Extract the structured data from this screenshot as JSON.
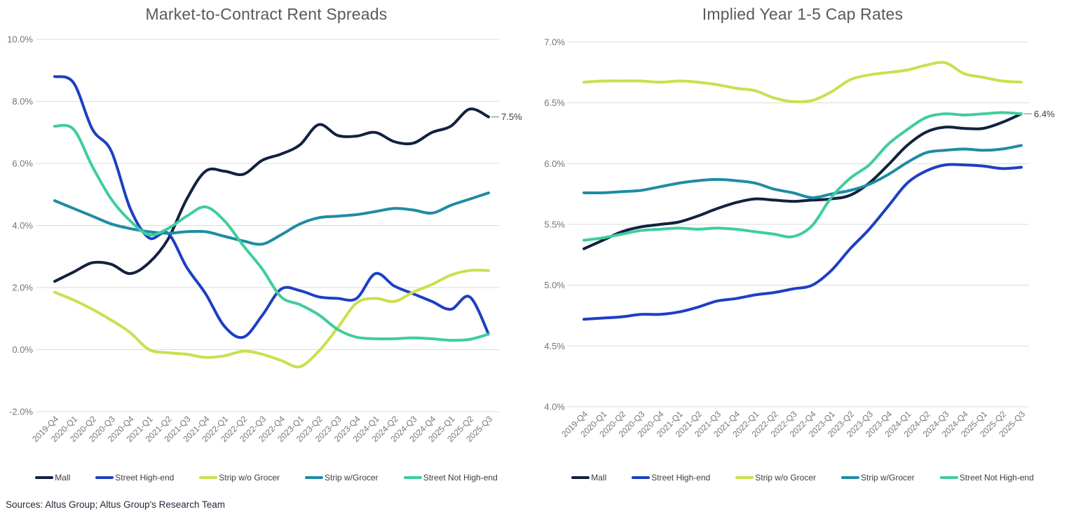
{
  "page": {
    "source_note": "Sources: Altus Group; Altus Group's Research Team"
  },
  "colors": {
    "mall": "#12213f",
    "street_high_end": "#1d3fc4",
    "strip_wo_grocer": "#c9e04e",
    "strip_w_grocer": "#1e8ca3",
    "street_not_high_end": "#3fcd9e",
    "grid": "#dcdcdc",
    "axis_text": "#757575",
    "title_text": "#595959",
    "annotation_text": "#3a3a3a"
  },
  "chart_data": [
    {
      "type": "line",
      "title": "Market-to-Contract Rent Spreads",
      "xlabel": "",
      "ylabel": "",
      "ylim": [
        -2.0,
        10.0
      ],
      "ytick_step": 2.0,
      "ytick_format": "percent_1dp",
      "grid": "horizontal",
      "legend_position": "bottom",
      "categories": [
        "2019-Q4",
        "2020-Q1",
        "2020-Q2",
        "2020-Q3",
        "2020-Q4",
        "2021-Q1",
        "2021-Q2",
        "2021-Q3",
        "2021-Q4",
        "2022-Q1",
        "2022-Q2",
        "2022-Q3",
        "2022-Q4",
        "2023-Q1",
        "2023-Q2",
        "2023-Q3",
        "2023-Q4",
        "2024-Q1",
        "2024-Q2",
        "2024-Q3",
        "2024-Q4",
        "2025-Q1",
        "2025-Q2",
        "2025-Q3"
      ],
      "series": [
        {
          "name": "Mall",
          "color": "#12213f",
          "values": [
            2.2,
            2.5,
            2.8,
            2.75,
            2.45,
            2.8,
            3.55,
            4.85,
            5.75,
            5.75,
            5.65,
            6.1,
            6.3,
            6.6,
            7.25,
            6.9,
            6.88,
            7.0,
            6.7,
            6.65,
            7.0,
            7.2,
            7.75,
            7.5
          ]
        },
        {
          "name": "Street High-end",
          "color": "#1d3fc4",
          "values": [
            8.8,
            8.6,
            7.1,
            6.4,
            4.55,
            3.6,
            3.75,
            2.65,
            1.8,
            0.75,
            0.4,
            1.1,
            1.95,
            1.9,
            1.7,
            1.65,
            1.65,
            2.45,
            2.05,
            1.8,
            1.55,
            1.3,
            1.7,
            0.5
          ]
        },
        {
          "name": "Strip w/o Grocer",
          "color": "#c9e04e",
          "values": [
            1.85,
            1.6,
            1.3,
            0.95,
            0.55,
            0.0,
            -0.1,
            -0.15,
            -0.25,
            -0.2,
            -0.05,
            -0.15,
            -0.35,
            -0.55,
            -0.05,
            0.7,
            1.5,
            1.65,
            1.55,
            1.85,
            2.1,
            2.4,
            2.55,
            2.55
          ]
        },
        {
          "name": "Strip w/Grocer",
          "color": "#1e8ca3",
          "values": [
            4.8,
            4.55,
            4.3,
            4.05,
            3.9,
            3.8,
            3.75,
            3.8,
            3.8,
            3.65,
            3.5,
            3.4,
            3.7,
            4.05,
            4.25,
            4.3,
            4.35,
            4.45,
            4.55,
            4.5,
            4.4,
            4.65,
            4.85,
            5.05
          ]
        },
        {
          "name": "Street Not High-end",
          "color": "#3fcd9e",
          "values": [
            7.2,
            7.1,
            5.9,
            4.85,
            4.15,
            3.7,
            3.9,
            4.3,
            4.6,
            4.15,
            3.35,
            2.6,
            1.7,
            1.45,
            1.12,
            0.65,
            0.4,
            0.35,
            0.35,
            0.38,
            0.35,
            0.3,
            0.33,
            0.5
          ]
        }
      ],
      "end_annotation": {
        "series": "Mall",
        "label": "7.5%"
      }
    },
    {
      "type": "line",
      "title": "Implied Year 1-5 Cap Rates",
      "xlabel": "",
      "ylabel": "",
      "ylim": [
        4.0,
        7.0
      ],
      "ytick_step": 0.5,
      "ytick_format": "percent_1dp",
      "grid": "horizontal",
      "legend_position": "bottom",
      "categories": [
        "2019-Q4",
        "2020-Q1",
        "2020-Q2",
        "2020-Q3",
        "2020-Q4",
        "2021-Q1",
        "2021-Q2",
        "2021-Q3",
        "2021-Q4",
        "2022-Q1",
        "2022-Q2",
        "2022-Q3",
        "2022-Q4",
        "2023-Q1",
        "2023-Q2",
        "2023-Q3",
        "2023-Q4",
        "2024-Q1",
        "2024-Q2",
        "2024-Q3",
        "2024-Q4",
        "2025-Q1",
        "2025-Q2",
        "2025-Q3"
      ],
      "series": [
        {
          "name": "Mall",
          "color": "#12213f",
          "values": [
            5.3,
            5.37,
            5.44,
            5.48,
            5.5,
            5.52,
            5.57,
            5.63,
            5.68,
            5.71,
            5.7,
            5.69,
            5.7,
            5.71,
            5.74,
            5.84,
            5.99,
            6.15,
            6.26,
            6.3,
            6.29,
            6.29,
            6.34,
            6.41
          ]
        },
        {
          "name": "Street High-end",
          "color": "#1d3fc4",
          "values": [
            4.72,
            4.73,
            4.74,
            4.76,
            4.76,
            4.78,
            4.82,
            4.87,
            4.89,
            4.92,
            4.94,
            4.97,
            5.0,
            5.12,
            5.3,
            5.46,
            5.65,
            5.84,
            5.94,
            5.99,
            5.99,
            5.98,
            5.96,
            5.97
          ]
        },
        {
          "name": "Strip w/o Grocer",
          "color": "#c9e04e",
          "values": [
            6.67,
            6.68,
            6.68,
            6.68,
            6.67,
            6.68,
            6.67,
            6.65,
            6.62,
            6.6,
            6.54,
            6.51,
            6.52,
            6.59,
            6.69,
            6.73,
            6.75,
            6.77,
            6.81,
            6.83,
            6.74,
            6.71,
            6.68,
            6.67
          ]
        },
        {
          "name": "Strip w/Grocer",
          "color": "#1e8ca3",
          "values": [
            5.76,
            5.76,
            5.77,
            5.78,
            5.81,
            5.84,
            5.86,
            5.87,
            5.86,
            5.84,
            5.79,
            5.76,
            5.72,
            5.75,
            5.78,
            5.83,
            5.91,
            6.01,
            6.09,
            6.11,
            6.12,
            6.11,
            6.12,
            6.15
          ]
        },
        {
          "name": "Street Not High-end",
          "color": "#3fcd9e",
          "values": [
            5.37,
            5.39,
            5.42,
            5.45,
            5.46,
            5.47,
            5.46,
            5.47,
            5.46,
            5.44,
            5.42,
            5.4,
            5.49,
            5.72,
            5.88,
            5.99,
            6.16,
            6.28,
            6.38,
            6.41,
            6.4,
            6.41,
            6.42,
            6.41
          ]
        }
      ],
      "end_annotation": {
        "series": "Mall",
        "label": "6.4%"
      }
    }
  ]
}
